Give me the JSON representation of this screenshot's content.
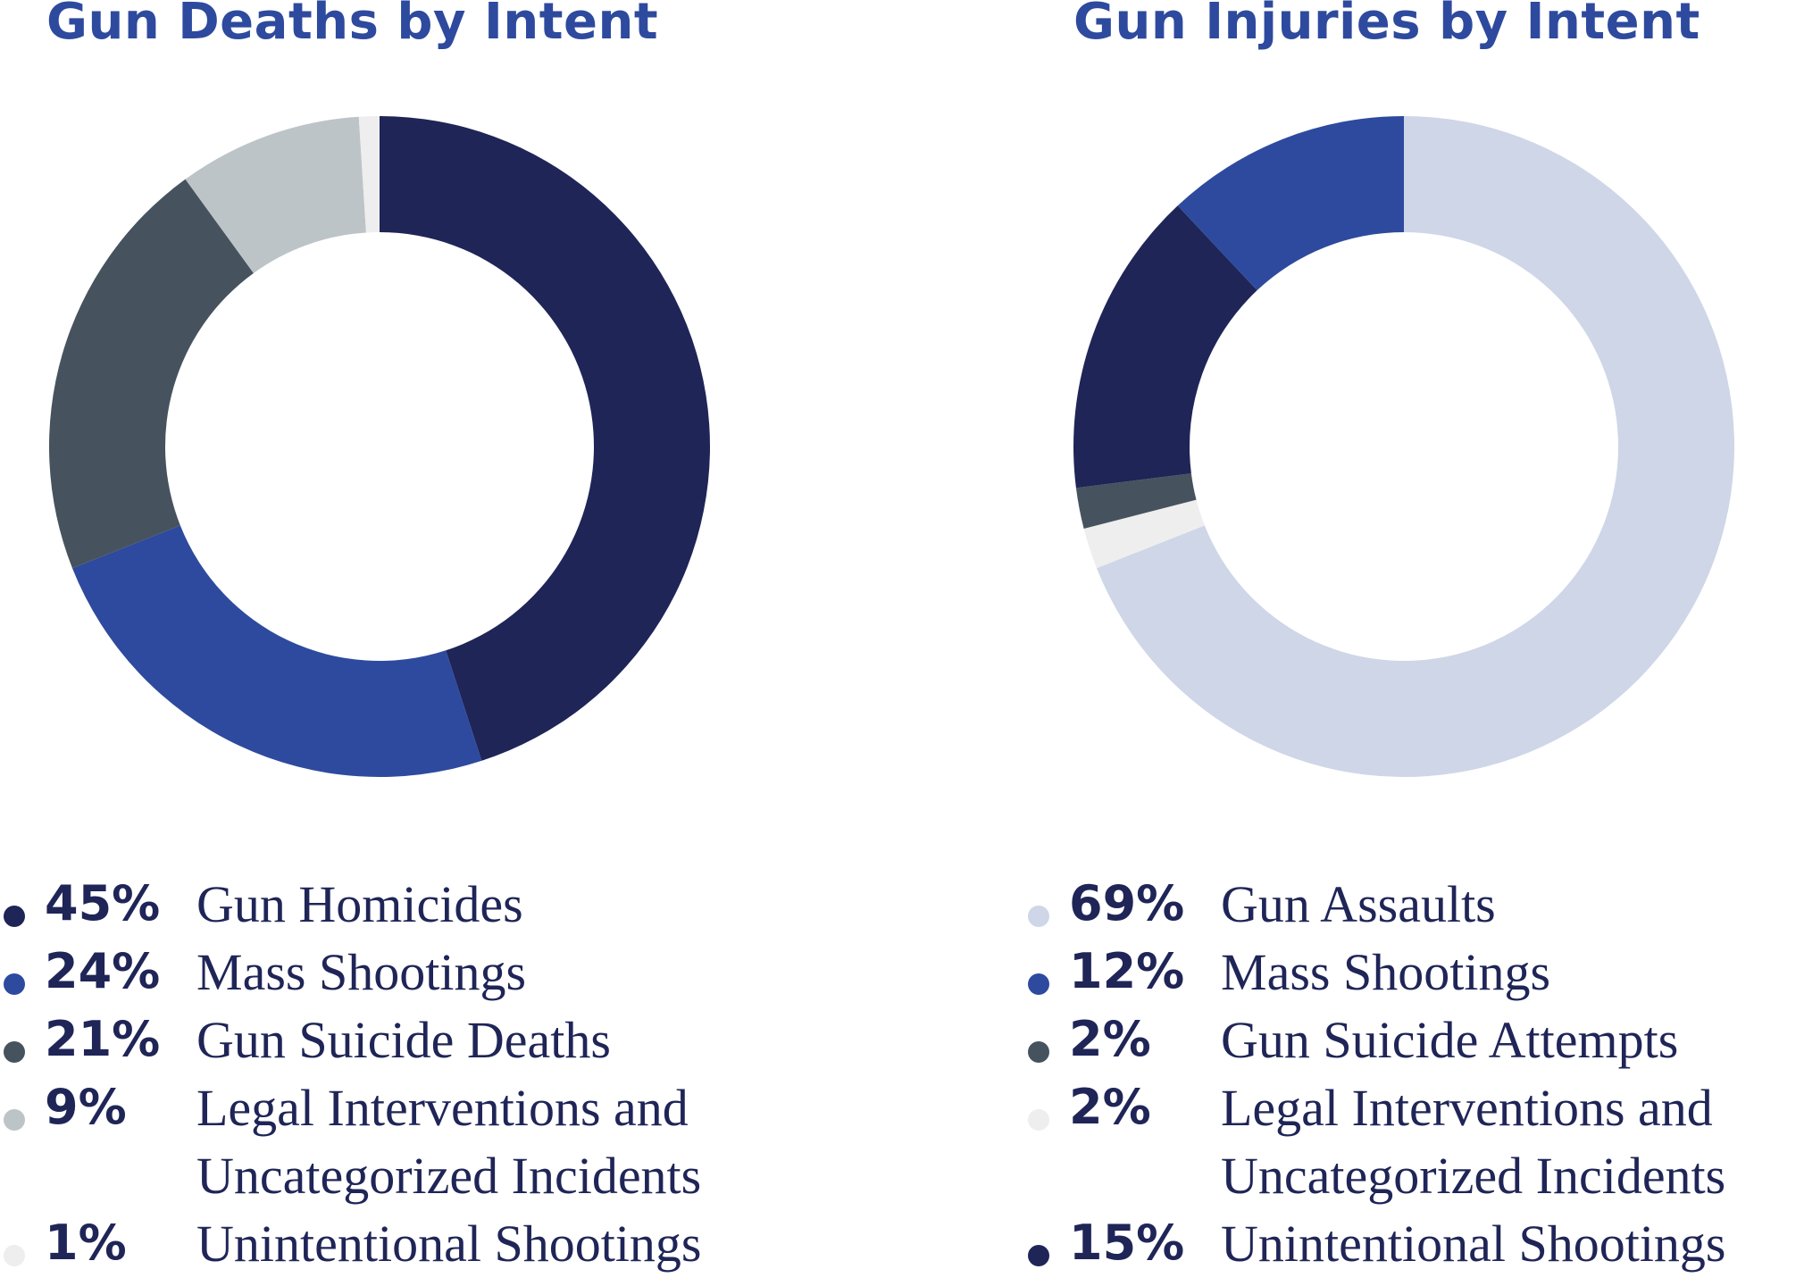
{
  "chart_data": [
    {
      "type": "pie",
      "title": "Gun Deaths by Intent",
      "series": [
        {
          "pct": "45%",
          "value": 45,
          "label": "Gun Homicides",
          "color": "#1f2557"
        },
        {
          "pct": "24%",
          "value": 24,
          "label": "Mass Shootings",
          "color": "#2e4a9e"
        },
        {
          "pct": "21%",
          "value": 21,
          "label": "Gun Suicide Deaths",
          "color": "#46535e"
        },
        {
          "pct": "9%",
          "value": 9,
          "label_line1": "Legal Interventions and",
          "label_line2": "Uncategorized Incidents",
          "color": "#bdc4c8"
        },
        {
          "pct": "1%",
          "value": 1,
          "label": "Unintentional Shootings",
          "color": "#eeeeee"
        }
      ]
    },
    {
      "type": "pie",
      "title": "Gun Injuries by Intent",
      "series": [
        {
          "pct": "69%",
          "value": 69,
          "label": "Gun Assaults",
          "color": "#ced6e7"
        },
        {
          "pct": "12%",
          "value": 12,
          "label": "Mass Shootings",
          "color": "#2e4a9e"
        },
        {
          "pct": "2%",
          "value": 2,
          "label": "Gun Suicide Attempts",
          "color": "#46535e"
        },
        {
          "pct": "2%",
          "value": 2,
          "label_line1": "Legal Interventions and",
          "label_line2": "Uncategorized Incidents",
          "color": "#eeeeee"
        },
        {
          "pct": "15%",
          "value": 15,
          "label": "Unintentional Shootings",
          "color": "#1f2557"
        }
      ],
      "slice_order_clockwise": [
        0,
        3,
        2,
        4,
        1
      ]
    }
  ]
}
